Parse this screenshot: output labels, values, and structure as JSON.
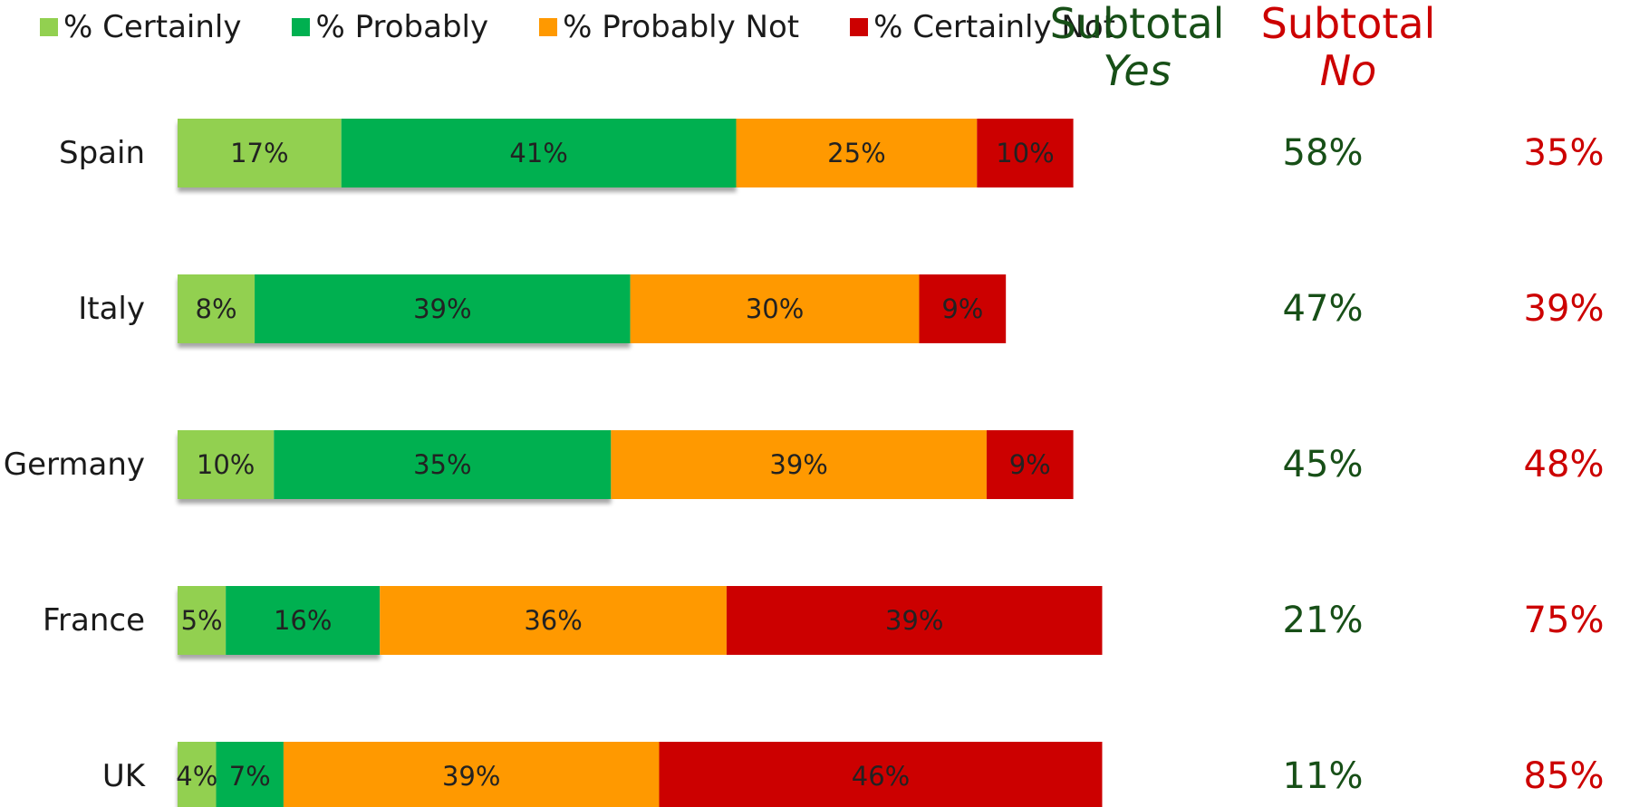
{
  "legend": {
    "items": [
      {
        "label": "% Certainly",
        "color": "#92d050"
      },
      {
        "label": "% Probably",
        "color": "#00b050"
      },
      {
        "label": "% Probably Not",
        "color": "#ff9900"
      },
      {
        "label": "% Certainly Not",
        "color": "#cc0000"
      }
    ]
  },
  "subtotal_headers": {
    "yes": {
      "word": "Subtotal",
      "qualifier": "Yes",
      "color": "#174f17"
    },
    "no": {
      "word": "Subtotal",
      "qualifier": "No",
      "color": "#cc0000"
    }
  },
  "chart_data": {
    "type": "bar",
    "orientation": "horizontal",
    "stacked": true,
    "categories": [
      "Spain",
      "Italy",
      "Germany",
      "France",
      "UK"
    ],
    "series": [
      {
        "name": "% Certainly",
        "color": "#92d050",
        "values": [
          17,
          8,
          10,
          5,
          4
        ],
        "labels": [
          "17%",
          "8%",
          "10%",
          "5%",
          "4%"
        ]
      },
      {
        "name": "% Probably",
        "color": "#00b050",
        "values": [
          41,
          39,
          35,
          16,
          7
        ],
        "labels": [
          "41%",
          "39%",
          "35%",
          "16%",
          "7%"
        ]
      },
      {
        "name": "% Probably Not",
        "color": "#ff9900",
        "values": [
          25,
          30,
          39,
          36,
          39
        ],
        "labels": [
          "25%",
          "30%",
          "39%",
          "36%",
          "39%"
        ]
      },
      {
        "name": "% Certainly Not",
        "color": "#cc0000",
        "values": [
          10,
          9,
          9,
          39,
          46
        ],
        "labels": [
          "10%",
          "9%",
          "9%",
          "39%",
          "46%"
        ]
      }
    ],
    "subtotal_yes": [
      "58%",
      "47%",
      "45%",
      "21%",
      "11%"
    ],
    "subtotal_no": [
      "35%",
      "39%",
      "48%",
      "75%",
      "85%"
    ],
    "xlim": [
      0,
      100
    ],
    "legend_position": "top",
    "grid": false
  }
}
